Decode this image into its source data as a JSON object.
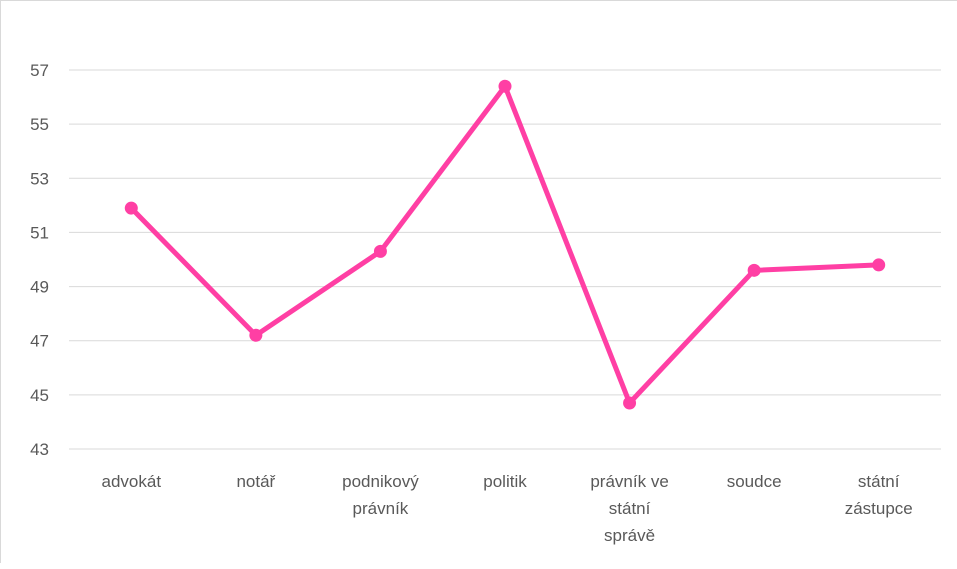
{
  "chart_data": {
    "type": "line",
    "categories": [
      [
        "advokát"
      ],
      [
        "notář"
      ],
      [
        "podnikový",
        "právník"
      ],
      [
        "politik"
      ],
      [
        "právník ve",
        "státní",
        "správě"
      ],
      [
        "soudce"
      ],
      [
        "státní",
        "zástupce"
      ]
    ],
    "series": [
      {
        "values": [
          51.9,
          47.2,
          50.3,
          56.4,
          44.7,
          49.6,
          49.8
        ],
        "color": "#ff3fa4"
      }
    ],
    "yticks": [
      43,
      45,
      47,
      49,
      51,
      53,
      55,
      57
    ],
    "ylim": [
      43,
      58
    ],
    "grid": true,
    "legend": "none",
    "title": "",
    "xlabel": "",
    "ylabel": ""
  }
}
